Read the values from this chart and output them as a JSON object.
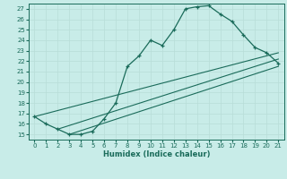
{
  "xlabel": "Humidex (Indice chaleur)",
  "xlim": [
    -0.5,
    21.5
  ],
  "ylim": [
    14.5,
    27.5
  ],
  "xticks": [
    0,
    1,
    2,
    3,
    4,
    5,
    6,
    7,
    8,
    9,
    10,
    11,
    12,
    13,
    14,
    15,
    16,
    17,
    18,
    19,
    20,
    21
  ],
  "yticks": [
    15,
    16,
    17,
    18,
    19,
    20,
    21,
    22,
    23,
    24,
    25,
    26,
    27
  ],
  "line_color": "#1a6b5a",
  "bg_color": "#c8ece8",
  "grid_color": "#b8ddd8",
  "main_curve_x": [
    0,
    1,
    2,
    3,
    4,
    5,
    6,
    7,
    8,
    9,
    10,
    11,
    12,
    13,
    14,
    15,
    16,
    17,
    18,
    19,
    20,
    21
  ],
  "main_curve_y": [
    16.7,
    16.0,
    15.5,
    15.0,
    15.0,
    15.3,
    16.5,
    18.0,
    21.5,
    22.5,
    24.0,
    23.5,
    25.0,
    27.0,
    27.2,
    27.3,
    26.5,
    25.8,
    24.5,
    23.3,
    22.8,
    21.8
  ],
  "line1_x": [
    0,
    21
  ],
  "line1_y": [
    16.7,
    22.8
  ],
  "line2_x": [
    2,
    21
  ],
  "line2_y": [
    15.5,
    22.2
  ],
  "line3_x": [
    3,
    21
  ],
  "line3_y": [
    15.0,
    21.5
  ]
}
